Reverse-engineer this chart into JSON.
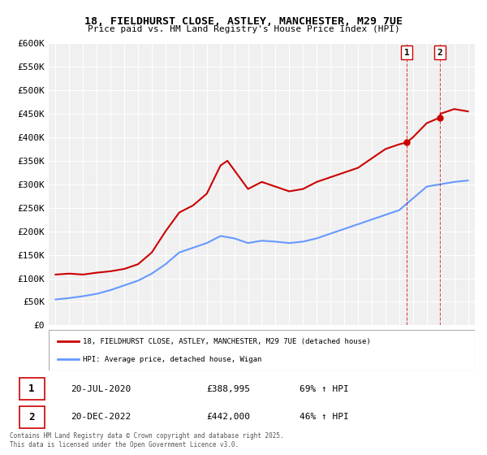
{
  "title": "18, FIELDHURST CLOSE, ASTLEY, MANCHESTER, M29 7UE",
  "subtitle": "Price paid vs. HM Land Registry's House Price Index (HPI)",
  "ylabel_ticks": [
    "£0",
    "£50K",
    "£100K",
    "£150K",
    "£200K",
    "£250K",
    "£300K",
    "£350K",
    "£400K",
    "£450K",
    "£500K",
    "£550K",
    "£600K"
  ],
  "ylim": [
    0,
    600000
  ],
  "ytick_vals": [
    0,
    50000,
    100000,
    150000,
    200000,
    250000,
    300000,
    350000,
    400000,
    450000,
    500000,
    550000,
    600000
  ],
  "xlim_start": 1994.5,
  "xlim_end": 2025.5,
  "hpi_color": "#6699ff",
  "price_color": "#cc0000",
  "bg_color": "#f0f0f0",
  "grid_color": "#ffffff",
  "marker1_x": 2020.55,
  "marker1_y": 388995,
  "marker1_label": "1",
  "marker2_x": 2022.97,
  "marker2_y": 442000,
  "marker2_label": "2",
  "legend_line1": "18, FIELDHURST CLOSE, ASTLEY, MANCHESTER, M29 7UE (detached house)",
  "legend_line2": "HPI: Average price, detached house, Wigan",
  "table_row1": [
    "1",
    "20-JUL-2020",
    "£388,995",
    "69% ↑ HPI"
  ],
  "table_row2": [
    "2",
    "20-DEC-2022",
    "£442,000",
    "46% ↑ HPI"
  ],
  "copyright_text": "Contains HM Land Registry data © Crown copyright and database right 2025.\nThis data is licensed under the Open Government Licence v3.0.",
  "hpi_line": {
    "x": [
      1995,
      1996,
      1997,
      1998,
      1999,
      2000,
      2001,
      2002,
      2003,
      2004,
      2005,
      2006,
      2007,
      2008,
      2009,
      2010,
      2011,
      2012,
      2013,
      2014,
      2015,
      2016,
      2017,
      2018,
      2019,
      2020,
      2021,
      2022,
      2023,
      2024,
      2025
    ],
    "y": [
      55000,
      58000,
      62000,
      67000,
      75000,
      85000,
      95000,
      110000,
      130000,
      155000,
      165000,
      175000,
      190000,
      185000,
      175000,
      180000,
      178000,
      175000,
      178000,
      185000,
      195000,
      205000,
      215000,
      225000,
      235000,
      245000,
      270000,
      295000,
      300000,
      305000,
      308000
    ]
  },
  "price_line": {
    "x": [
      1995,
      1996,
      1997,
      1998,
      1999,
      2000,
      2001,
      2002,
      2003,
      2004,
      2005,
      2006,
      2007,
      2007.5,
      2008,
      2009,
      2010,
      2011,
      2012,
      2013,
      2014,
      2015,
      2016,
      2017,
      2018,
      2019,
      2020,
      2020.55,
      2021,
      2022,
      2022.97,
      2023,
      2024,
      2025
    ],
    "y": [
      108000,
      110000,
      108000,
      112000,
      115000,
      120000,
      130000,
      155000,
      200000,
      240000,
      255000,
      280000,
      340000,
      350000,
      330000,
      290000,
      305000,
      295000,
      285000,
      290000,
      305000,
      315000,
      325000,
      335000,
      355000,
      375000,
      385000,
      388995,
      400000,
      430000,
      442000,
      450000,
      460000,
      455000
    ]
  }
}
